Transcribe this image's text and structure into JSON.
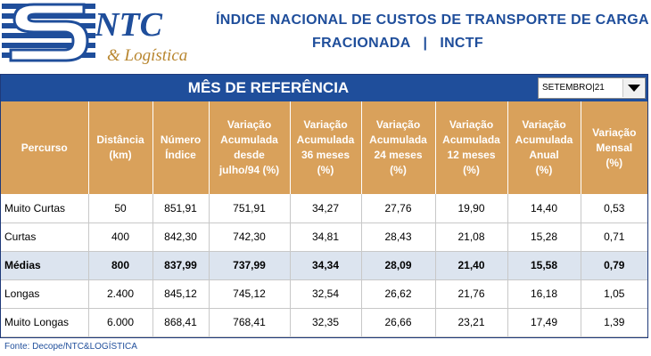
{
  "header": {
    "logo_text": "NTC",
    "logo_subtext": "& Logística",
    "title_line1": "ÍNDICE NACIONAL DE CUSTOS DE TRANSPORTE DE CARGA",
    "title_line2_left": "FRACIONADA",
    "title_line2_sep": "|",
    "title_line2_right": "INCTF"
  },
  "reference": {
    "title": "MÊS DE REFERÊNCIA",
    "selected": "SETEMBRO|21"
  },
  "table": {
    "columns": [
      [
        "Percurso"
      ],
      [
        "Distância",
        "(km)"
      ],
      [
        "Número",
        "Índice"
      ],
      [
        "Variação",
        "Acumulada",
        "desde",
        "julho/94   (%)"
      ],
      [
        "Variação",
        "Acumulada",
        "36 meses",
        "(%)"
      ],
      [
        "Variação",
        "Acumulada",
        "24 meses",
        "(%)"
      ],
      [
        "Variação",
        "Acumulada",
        "12 meses",
        "(%)"
      ],
      [
        "Variação",
        "Acumulada",
        "Anual",
        "(%)"
      ],
      [
        "Variação",
        "Mensal",
        "(%)"
      ]
    ],
    "rows": [
      {
        "cells": [
          "Muito Curtas",
          "50",
          "851,91",
          "751,91",
          "34,27",
          "27,76",
          "19,90",
          "14,40",
          "0,53"
        ],
        "highlight": false
      },
      {
        "cells": [
          "Curtas",
          "400",
          "842,30",
          "742,30",
          "34,81",
          "28,43",
          "21,08",
          "15,28",
          "0,71"
        ],
        "highlight": false
      },
      {
        "cells": [
          "Médias",
          "800",
          "837,99",
          "737,99",
          "34,34",
          "28,09",
          "21,40",
          "15,58",
          "0,79"
        ],
        "highlight": true
      },
      {
        "cells": [
          "Longas",
          "2.400",
          "845,12",
          "745,12",
          "32,54",
          "26,62",
          "21,76",
          "16,18",
          "1,05"
        ],
        "highlight": false
      },
      {
        "cells": [
          "Muito Longas",
          "6.000",
          "868,41",
          "768,41",
          "32,35",
          "26,66",
          "23,21",
          "17,49",
          "1,39"
        ],
        "highlight": false
      }
    ]
  },
  "footer": {
    "source": "Fonte: Decope/NTC&LOGÍSTICA"
  },
  "colors": {
    "brand_blue": "#1f4e9b",
    "header_tan": "#d9a15b",
    "highlight_row": "#dce4ef"
  }
}
